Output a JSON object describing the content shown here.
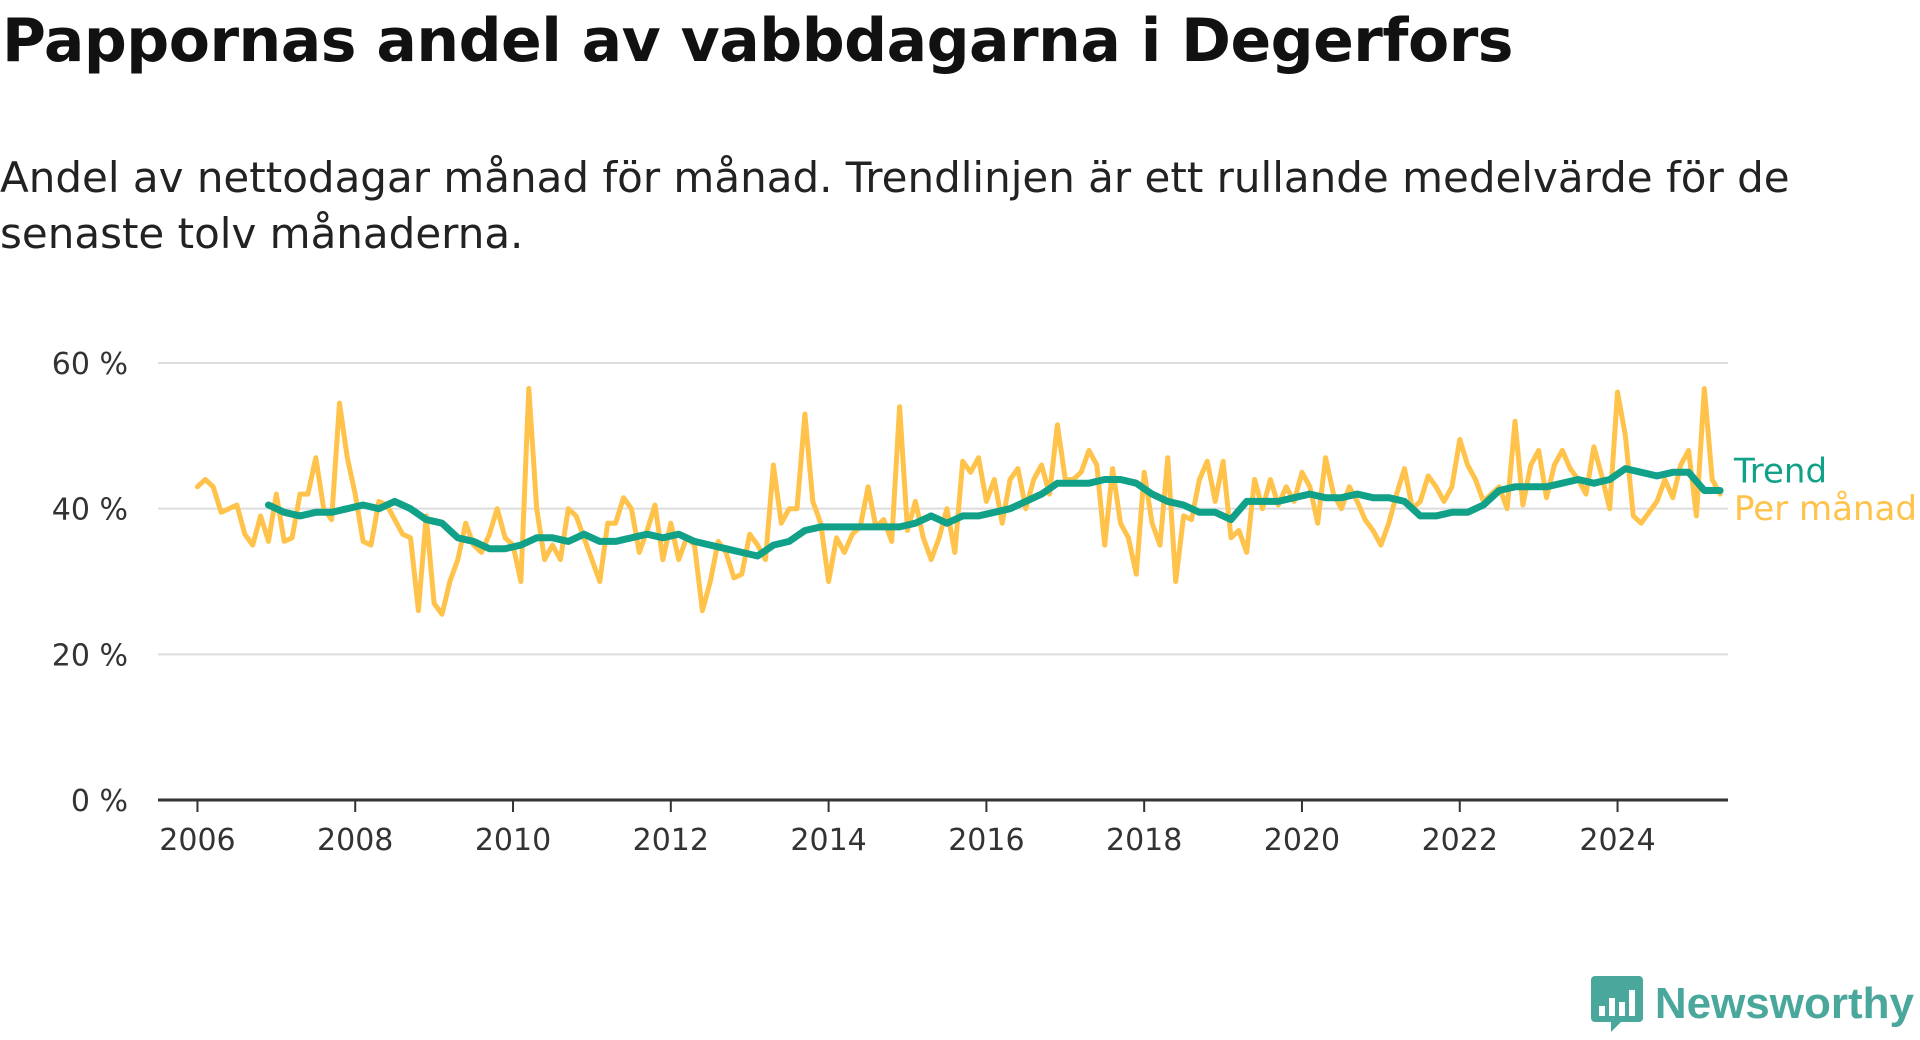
{
  "title": "Pappornas andel av vabbdagarna i Degerfors",
  "subtitle": "Andel av nettodagar månad för månad. Trendlinjen är ett rullande medelvärde för de senaste tolv månaderna.",
  "brand": {
    "name": "Newsworthy",
    "color": "#4aa79b"
  },
  "colors": {
    "monthly": "#ffc24a",
    "trend": "#11a088",
    "grid": "#dddddd",
    "axis": "#333333"
  },
  "chart_data": {
    "type": "line",
    "ylim": [
      0,
      60
    ],
    "xlim": [
      2005.5,
      2025.4
    ],
    "y_ticks": [
      {
        "value": 0,
        "label": "0 %"
      },
      {
        "value": 20,
        "label": "20 %"
      },
      {
        "value": 40,
        "label": "40 %"
      },
      {
        "value": 60,
        "label": "60 %"
      }
    ],
    "x_ticks": [
      {
        "value": 2006,
        "label": "2006"
      },
      {
        "value": 2008,
        "label": "2008"
      },
      {
        "value": 2010,
        "label": "2010"
      },
      {
        "value": 2012,
        "label": "2012"
      },
      {
        "value": 2014,
        "label": "2014"
      },
      {
        "value": 2016,
        "label": "2016"
      },
      {
        "value": 2018,
        "label": "2018"
      },
      {
        "value": 2020,
        "label": "2020"
      },
      {
        "value": 2022,
        "label": "2022"
      },
      {
        "value": 2024,
        "label": "2024"
      }
    ],
    "grid": true,
    "series": [
      {
        "name": "Per månad",
        "values": [
          [
            2006.0,
            43
          ],
          [
            2006.1,
            44
          ],
          [
            2006.2,
            43
          ],
          [
            2006.3,
            39.5
          ],
          [
            2006.4,
            40
          ],
          [
            2006.5,
            40.5
          ],
          [
            2006.6,
            36.5
          ],
          [
            2006.7,
            35
          ],
          [
            2006.8,
            39
          ],
          [
            2006.9,
            35.5
          ],
          [
            2007.0,
            42
          ],
          [
            2007.1,
            35.5
          ],
          [
            2007.2,
            36
          ],
          [
            2007.3,
            42
          ],
          [
            2007.4,
            42
          ],
          [
            2007.5,
            47
          ],
          [
            2007.6,
            40
          ],
          [
            2007.7,
            38.5
          ],
          [
            2007.8,
            54.5
          ],
          [
            2007.9,
            47
          ],
          [
            2008.0,
            42
          ],
          [
            2008.1,
            35.5
          ],
          [
            2008.2,
            35
          ],
          [
            2008.3,
            41
          ],
          [
            2008.4,
            40.5
          ],
          [
            2008.5,
            38.5
          ],
          [
            2008.6,
            36.5
          ],
          [
            2008.7,
            36
          ],
          [
            2008.8,
            26
          ],
          [
            2008.9,
            39
          ],
          [
            2009.0,
            27
          ],
          [
            2009.1,
            25.5
          ],
          [
            2009.2,
            30
          ],
          [
            2009.3,
            33
          ],
          [
            2009.4,
            38
          ],
          [
            2009.5,
            35
          ],
          [
            2009.6,
            34
          ],
          [
            2009.7,
            36.5
          ],
          [
            2009.8,
            40
          ],
          [
            2009.9,
            36
          ],
          [
            2010.0,
            35
          ],
          [
            2010.1,
            30
          ],
          [
            2010.2,
            56.5
          ],
          [
            2010.3,
            40
          ],
          [
            2010.4,
            33
          ],
          [
            2010.5,
            35
          ],
          [
            2010.6,
            33
          ],
          [
            2010.7,
            40
          ],
          [
            2010.8,
            39
          ],
          [
            2010.9,
            36
          ],
          [
            2011.0,
            33
          ],
          [
            2011.1,
            30
          ],
          [
            2011.2,
            38
          ],
          [
            2011.3,
            38
          ],
          [
            2011.4,
            41.5
          ],
          [
            2011.5,
            40
          ],
          [
            2011.6,
            34
          ],
          [
            2011.7,
            37
          ],
          [
            2011.8,
            40.5
          ],
          [
            2011.9,
            33
          ],
          [
            2012.0,
            38
          ],
          [
            2012.1,
            33
          ],
          [
            2012.2,
            36
          ],
          [
            2012.3,
            35
          ],
          [
            2012.4,
            26
          ],
          [
            2012.5,
            30
          ],
          [
            2012.6,
            35.5
          ],
          [
            2012.7,
            34
          ],
          [
            2012.8,
            30.5
          ],
          [
            2012.9,
            31
          ],
          [
            2013.0,
            36.5
          ],
          [
            2013.1,
            35
          ],
          [
            2013.2,
            33
          ],
          [
            2013.3,
            46
          ],
          [
            2013.4,
            38
          ],
          [
            2013.5,
            40
          ],
          [
            2013.6,
            40
          ],
          [
            2013.7,
            53
          ],
          [
            2013.8,
            41
          ],
          [
            2013.9,
            38
          ],
          [
            2014.0,
            30
          ],
          [
            2014.1,
            36
          ],
          [
            2014.2,
            34
          ],
          [
            2014.3,
            36.5
          ],
          [
            2014.4,
            37.5
          ],
          [
            2014.5,
            43
          ],
          [
            2014.6,
            37.5
          ],
          [
            2014.7,
            38.5
          ],
          [
            2014.8,
            35.5
          ],
          [
            2014.9,
            54
          ],
          [
            2015.0,
            37
          ],
          [
            2015.1,
            41
          ],
          [
            2015.2,
            36
          ],
          [
            2015.3,
            33
          ],
          [
            2015.4,
            36
          ],
          [
            2015.5,
            40
          ],
          [
            2015.6,
            34
          ],
          [
            2015.7,
            46.5
          ],
          [
            2015.8,
            45
          ],
          [
            2015.9,
            47
          ],
          [
            2016.0,
            41
          ],
          [
            2016.1,
            44
          ],
          [
            2016.2,
            38
          ],
          [
            2016.3,
            44
          ],
          [
            2016.4,
            45.5
          ],
          [
            2016.5,
            40
          ],
          [
            2016.6,
            44
          ],
          [
            2016.7,
            46
          ],
          [
            2016.8,
            42
          ],
          [
            2016.9,
            51.5
          ],
          [
            2017.0,
            44
          ],
          [
            2017.1,
            44
          ],
          [
            2017.2,
            45
          ],
          [
            2017.3,
            48
          ],
          [
            2017.4,
            46
          ],
          [
            2017.5,
            35
          ],
          [
            2017.6,
            45.5
          ],
          [
            2017.7,
            38
          ],
          [
            2017.8,
            36
          ],
          [
            2017.9,
            31
          ],
          [
            2018.0,
            45
          ],
          [
            2018.1,
            38
          ],
          [
            2018.2,
            35
          ],
          [
            2018.3,
            47
          ],
          [
            2018.4,
            30
          ],
          [
            2018.5,
            39
          ],
          [
            2018.6,
            38.5
          ],
          [
            2018.7,
            44
          ],
          [
            2018.8,
            46.5
          ],
          [
            2018.9,
            41
          ],
          [
            2019.0,
            46.5
          ],
          [
            2019.1,
            36
          ],
          [
            2019.2,
            37
          ],
          [
            2019.3,
            34
          ],
          [
            2019.4,
            44
          ],
          [
            2019.5,
            40
          ],
          [
            2019.6,
            44
          ],
          [
            2019.7,
            40.5
          ],
          [
            2019.8,
            43
          ],
          [
            2019.9,
            41
          ],
          [
            2020.0,
            45
          ],
          [
            2020.1,
            43
          ],
          [
            2020.2,
            38
          ],
          [
            2020.3,
            47
          ],
          [
            2020.4,
            42
          ],
          [
            2020.5,
            40
          ],
          [
            2020.6,
            43
          ],
          [
            2020.7,
            41
          ],
          [
            2020.8,
            38.5
          ],
          [
            2020.9,
            37
          ],
          [
            2021.0,
            35
          ],
          [
            2021.1,
            38
          ],
          [
            2021.2,
            42
          ],
          [
            2021.3,
            45.5
          ],
          [
            2021.4,
            40
          ],
          [
            2021.5,
            41
          ],
          [
            2021.6,
            44.5
          ],
          [
            2021.7,
            43
          ],
          [
            2021.8,
            41
          ],
          [
            2021.9,
            43
          ],
          [
            2022.0,
            49.5
          ],
          [
            2022.1,
            46
          ],
          [
            2022.2,
            44
          ],
          [
            2022.3,
            41
          ],
          [
            2022.4,
            42
          ],
          [
            2022.5,
            43
          ],
          [
            2022.6,
            40
          ],
          [
            2022.7,
            52
          ],
          [
            2022.8,
            40.5
          ],
          [
            2022.9,
            46
          ],
          [
            2023.0,
            48
          ],
          [
            2023.1,
            41.5
          ],
          [
            2023.2,
            46
          ],
          [
            2023.3,
            48
          ],
          [
            2023.4,
            45.5
          ],
          [
            2023.5,
            44
          ],
          [
            2023.6,
            42
          ],
          [
            2023.7,
            48.5
          ],
          [
            2023.8,
            44.5
          ],
          [
            2023.9,
            40
          ],
          [
            2024.0,
            56
          ],
          [
            2024.1,
            50
          ],
          [
            2024.2,
            39
          ],
          [
            2024.3,
            38
          ],
          [
            2024.4,
            39.5
          ],
          [
            2024.5,
            41
          ],
          [
            2024.6,
            44
          ],
          [
            2024.7,
            41.5
          ],
          [
            2024.8,
            46
          ],
          [
            2024.9,
            48
          ],
          [
            2025.0,
            39
          ],
          [
            2025.1,
            56.5
          ],
          [
            2025.2,
            44
          ],
          [
            2025.3,
            42
          ]
        ]
      },
      {
        "name": "Trend",
        "values": [
          [
            2006.9,
            40.5
          ],
          [
            2007.1,
            39.5
          ],
          [
            2007.3,
            39
          ],
          [
            2007.5,
            39.5
          ],
          [
            2007.7,
            39.5
          ],
          [
            2007.9,
            40
          ],
          [
            2008.1,
            40.5
          ],
          [
            2008.3,
            40
          ],
          [
            2008.5,
            41
          ],
          [
            2008.7,
            40
          ],
          [
            2008.9,
            38.5
          ],
          [
            2009.1,
            38
          ],
          [
            2009.3,
            36
          ],
          [
            2009.5,
            35.5
          ],
          [
            2009.7,
            34.5
          ],
          [
            2009.9,
            34.5
          ],
          [
            2010.1,
            35
          ],
          [
            2010.3,
            36
          ],
          [
            2010.5,
            36
          ],
          [
            2010.7,
            35.5
          ],
          [
            2010.9,
            36.5
          ],
          [
            2011.1,
            35.5
          ],
          [
            2011.3,
            35.5
          ],
          [
            2011.5,
            36
          ],
          [
            2011.7,
            36.5
          ],
          [
            2011.9,
            36
          ],
          [
            2012.1,
            36.5
          ],
          [
            2012.3,
            35.5
          ],
          [
            2012.5,
            35
          ],
          [
            2012.7,
            34.5
          ],
          [
            2012.9,
            34
          ],
          [
            2013.1,
            33.5
          ],
          [
            2013.3,
            35
          ],
          [
            2013.5,
            35.5
          ],
          [
            2013.7,
            37
          ],
          [
            2013.9,
            37.5
          ],
          [
            2014.1,
            37.5
          ],
          [
            2014.3,
            37.5
          ],
          [
            2014.5,
            37.5
          ],
          [
            2014.7,
            37.5
          ],
          [
            2014.9,
            37.5
          ],
          [
            2015.1,
            38
          ],
          [
            2015.3,
            39
          ],
          [
            2015.5,
            38
          ],
          [
            2015.7,
            39
          ],
          [
            2015.9,
            39
          ],
          [
            2016.1,
            39.5
          ],
          [
            2016.3,
            40
          ],
          [
            2016.5,
            41
          ],
          [
            2016.7,
            42
          ],
          [
            2016.9,
            43.5
          ],
          [
            2017.1,
            43.5
          ],
          [
            2017.3,
            43.5
          ],
          [
            2017.5,
            44
          ],
          [
            2017.7,
            44
          ],
          [
            2017.9,
            43.5
          ],
          [
            2018.1,
            42
          ],
          [
            2018.3,
            41
          ],
          [
            2018.5,
            40.5
          ],
          [
            2018.7,
            39.5
          ],
          [
            2018.9,
            39.5
          ],
          [
            2019.1,
            38.5
          ],
          [
            2019.3,
            41
          ],
          [
            2019.5,
            41
          ],
          [
            2019.7,
            41
          ],
          [
            2019.9,
            41.5
          ],
          [
            2020.1,
            42
          ],
          [
            2020.3,
            41.5
          ],
          [
            2020.5,
            41.5
          ],
          [
            2020.7,
            42
          ],
          [
            2020.9,
            41.5
          ],
          [
            2021.1,
            41.5
          ],
          [
            2021.3,
            41
          ],
          [
            2021.5,
            39
          ],
          [
            2021.7,
            39
          ],
          [
            2021.9,
            39.5
          ],
          [
            2022.1,
            39.5
          ],
          [
            2022.3,
            40.5
          ],
          [
            2022.5,
            42.5
          ],
          [
            2022.7,
            43
          ],
          [
            2022.9,
            43
          ],
          [
            2023.1,
            43
          ],
          [
            2023.3,
            43.5
          ],
          [
            2023.5,
            44
          ],
          [
            2023.7,
            43.5
          ],
          [
            2023.9,
            44
          ],
          [
            2024.1,
            45.5
          ],
          [
            2024.3,
            45
          ],
          [
            2024.5,
            44.5
          ],
          [
            2024.7,
            45
          ],
          [
            2024.9,
            45
          ],
          [
            2025.1,
            42.5
          ],
          [
            2025.3,
            42.5
          ]
        ]
      }
    ]
  }
}
